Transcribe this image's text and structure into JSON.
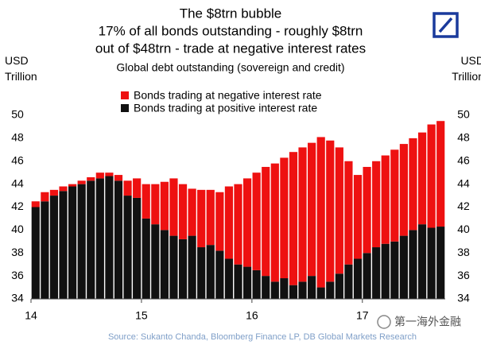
{
  "chart_data": {
    "type": "stacked_bar",
    "title_lines": [
      "The $8trn bubble",
      "17% of all bonds outstanding - roughly $8trn",
      "out of $48trn - trade at negative interest rates"
    ],
    "subtitle": "Global debt outstanding (sovereign and credit)",
    "y_label": "USD Trillion",
    "y2_label": "USD Trillion",
    "source": "Source: Sukanto Chanda, Bloomberg Finance LP, DB Global Markets Research",
    "watermark": "第一海外金融",
    "categories": [
      "14",
      null,
      null,
      null,
      null,
      null,
      null,
      null,
      null,
      null,
      null,
      null,
      "15",
      null,
      null,
      null,
      null,
      null,
      null,
      null,
      null,
      null,
      null,
      null,
      "16",
      null,
      null,
      null,
      null,
      null,
      null,
      null,
      null,
      null,
      null,
      null,
      "17",
      null,
      null,
      null,
      null,
      null,
      null,
      null,
      null
    ],
    "series": [
      {
        "name": "Bonds trading at negative interest rate",
        "color": "#ee1111",
        "values": [
          0.5,
          0.8,
          0.5,
          0.4,
          0.2,
          0.3,
          0.3,
          0.5,
          0.3,
          0.5,
          1.3,
          1.7,
          3,
          3.5,
          4.2,
          5,
          4.8,
          4.1,
          5,
          4.8,
          5.1,
          6.3,
          7,
          7.7,
          8.5,
          9.5,
          10.3,
          10.5,
          11.6,
          11.7,
          11.6,
          13.1,
          12.3,
          11,
          9,
          7.3,
          7.5,
          7.5,
          7.7,
          8,
          8,
          8,
          8,
          9,
          9.2
        ]
      },
      {
        "name": "Bonds trading at positive interest rate",
        "color": "#111111",
        "values": [
          42,
          42.5,
          43,
          43.4,
          43.8,
          44,
          44.3,
          44.5,
          44.7,
          44.3,
          43,
          42.8,
          41,
          40.5,
          40,
          39.5,
          39.2,
          39.5,
          38.5,
          38.7,
          38.2,
          37.5,
          37,
          36.8,
          36.5,
          36,
          35.5,
          35.8,
          35.2,
          35.5,
          36,
          35,
          35.5,
          36.2,
          37,
          37.5,
          38,
          38.5,
          38.8,
          39,
          39.5,
          40,
          40.5,
          40.2,
          40.3
        ]
      }
    ],
    "ylim": [
      34,
      50
    ],
    "yticks": [
      34,
      36,
      38,
      40,
      42,
      44,
      46,
      48,
      50
    ],
    "y2lim": [
      34,
      50
    ],
    "y2ticks": [
      34,
      36,
      38,
      40,
      42,
      44,
      46,
      48,
      50
    ]
  }
}
